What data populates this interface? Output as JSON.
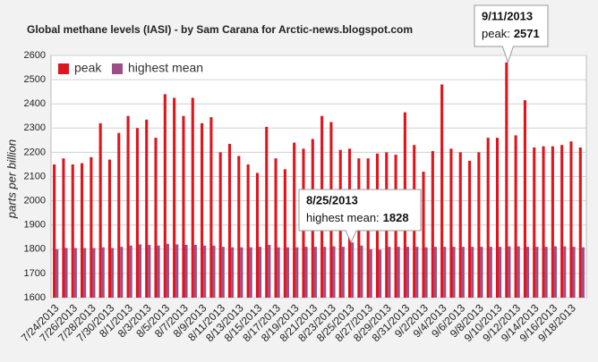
{
  "chart_data": {
    "type": "bar",
    "title": "Global methane levels (IASI) - by Sam Carana for Arctic-news.blogspot.com",
    "y_label": "parts per billion",
    "categories": [
      "7/24/2013",
      null,
      "7/26/2013",
      null,
      "7/28/2013",
      null,
      "7/30/2013",
      null,
      "8/1/2013",
      null,
      "8/3/2013",
      null,
      "8/5/2013",
      null,
      "8/7/2013",
      null,
      "8/9/2013",
      null,
      "8/11/2013",
      null,
      "8/13/2013",
      null,
      "8/15/2013",
      null,
      "8/17/2013",
      null,
      "8/19/2013",
      null,
      "8/21/2013",
      null,
      "8/23/2013",
      null,
      "8/25/2013",
      null,
      "8/27/2013",
      null,
      "8/29/2013",
      null,
      "8/31/2013",
      null,
      "9/2/2013",
      null,
      "9/4/2013",
      null,
      "9/6/2013",
      null,
      "9/8/2013",
      null,
      "9/10/2013",
      null,
      "9/12/2013",
      null,
      "9/14/2013",
      null,
      "9/16/2013",
      null,
      "9/18/2013",
      null
    ],
    "series": [
      {
        "name": "peak",
        "color": "#e0141c",
        "values": [
          2150,
          2175,
          2150,
          2155,
          2180,
          2320,
          2170,
          2280,
          2350,
          2300,
          2335,
          2260,
          2440,
          2425,
          2350,
          2425,
          2320,
          2345,
          2200,
          2235,
          2185,
          2150,
          2115,
          2305,
          2175,
          2130,
          2240,
          2215,
          2255,
          2350,
          2325,
          2210,
          2215,
          2175,
          2175,
          2195,
          2200,
          2190,
          2365,
          2230,
          2120,
          2205,
          2480,
          2215,
          2200,
          2165,
          2200,
          2260,
          2260,
          2571,
          2270,
          2415,
          2220,
          2225,
          2225,
          2230,
          2245,
          2220
        ]
      },
      {
        "name": "highest mean",
        "color": "#9c4f86",
        "values": [
          1800,
          1805,
          1805,
          1805,
          1805,
          1808,
          1805,
          1810,
          1815,
          1820,
          1818,
          1815,
          1822,
          1820,
          1818,
          1818,
          1815,
          1815,
          1810,
          1808,
          1808,
          1808,
          1810,
          1818,
          1808,
          1808,
          1808,
          1810,
          1810,
          1810,
          1812,
          1810,
          1828,
          1815,
          1800,
          1798,
          1810,
          1810,
          1810,
          1810,
          1808,
          1810,
          1810,
          1810,
          1810,
          1810,
          1810,
          1810,
          1810,
          1812,
          1812,
          1810,
          1810,
          1810,
          1812,
          1812,
          1810,
          1808
        ]
      }
    ],
    "ylim": [
      1600,
      2600
    ],
    "yticks": [
      1600,
      1700,
      1800,
      1900,
      2000,
      2100,
      2200,
      2300,
      2400,
      2500,
      2600
    ],
    "grid": true,
    "legend": "upper left",
    "annotations": [
      {
        "label": "9/11/2013",
        "text": "peak:"
      },
      {
        "label": "8/25/2013",
        "text": "highest mean:"
      }
    ]
  }
}
